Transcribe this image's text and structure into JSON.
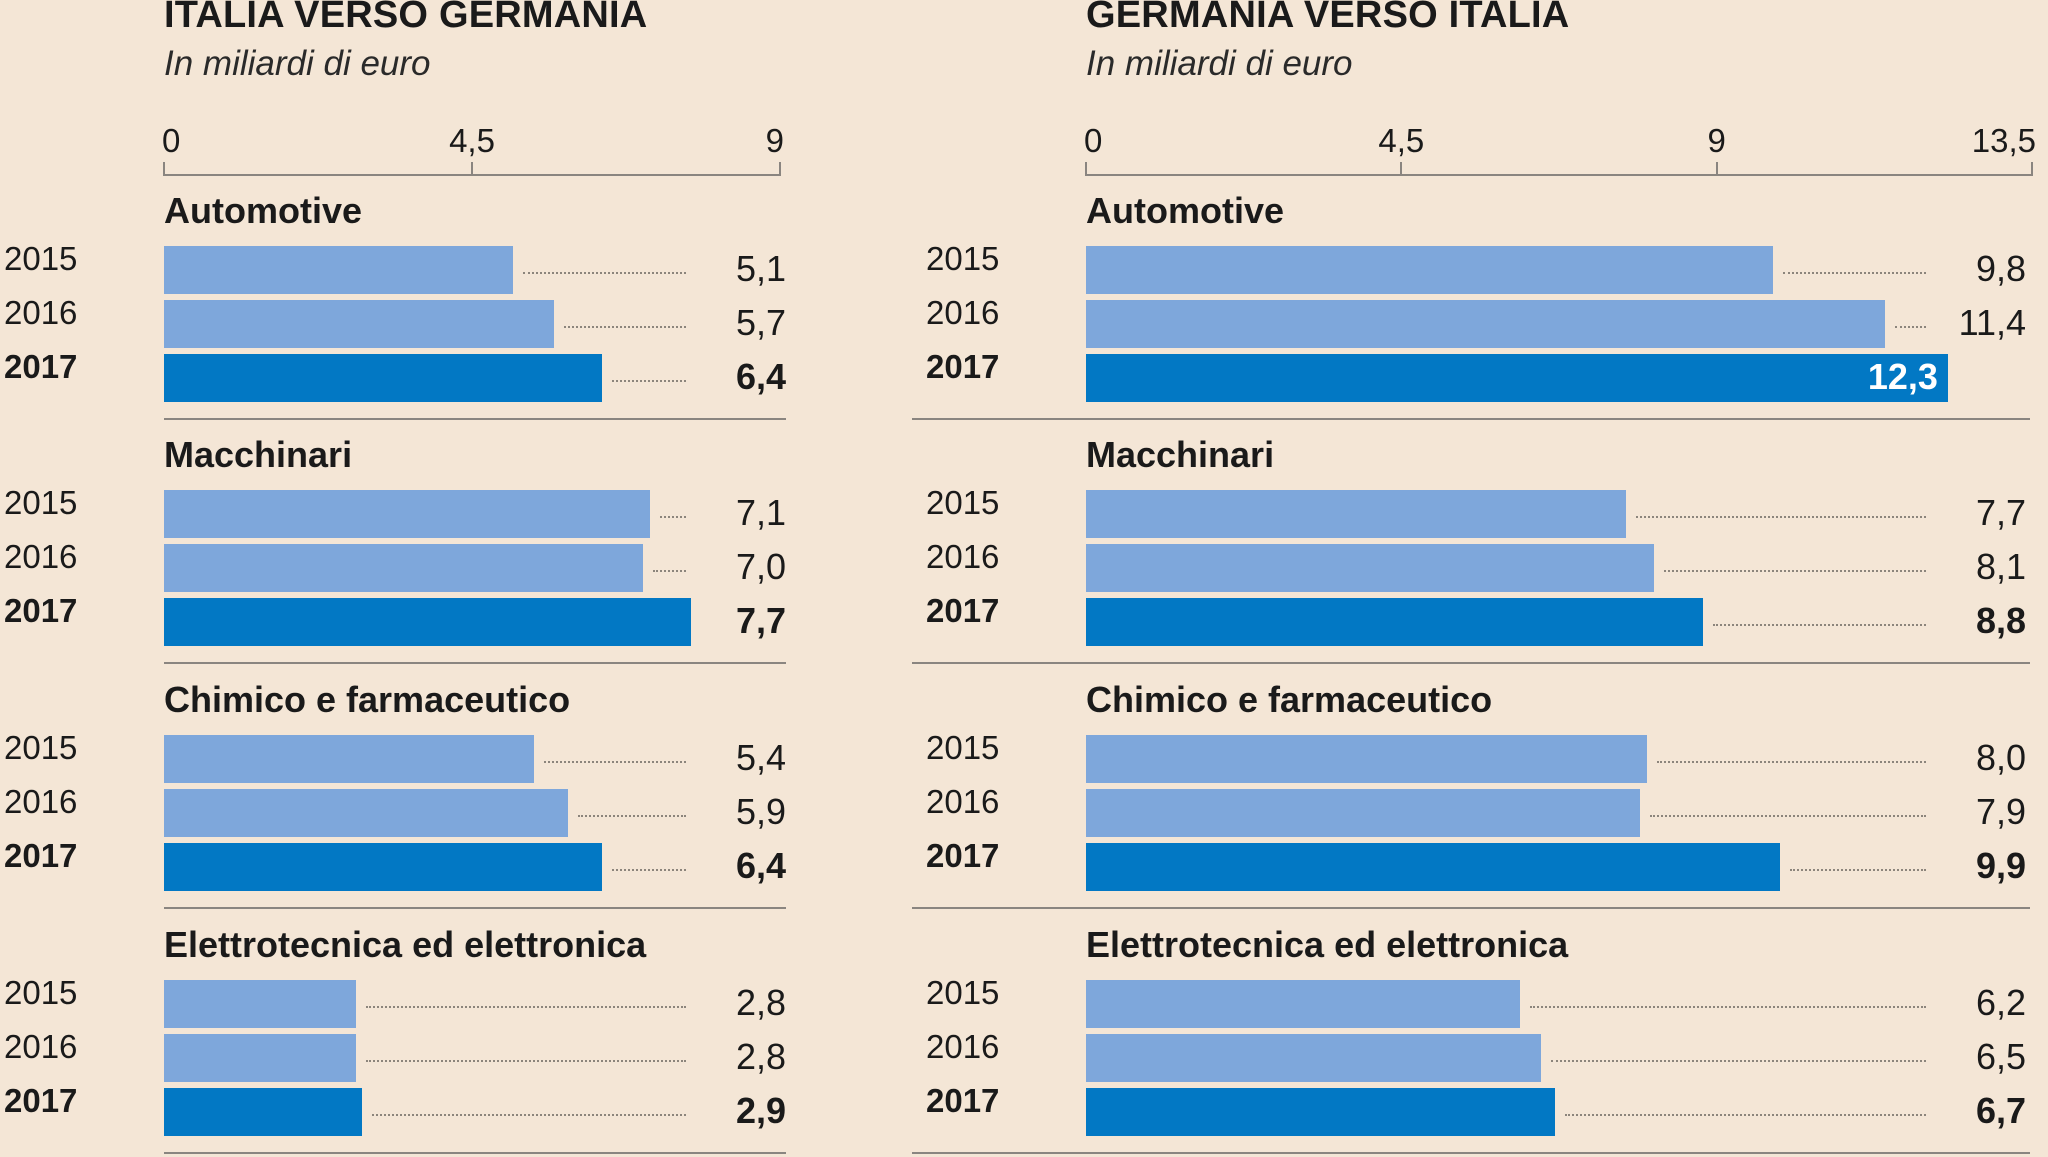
{
  "chart_data": [
    {
      "type": "bar",
      "orientation": "horizontal",
      "title": "ITALIA VERSO GERMANIA",
      "subtitle": "In miliardi di euro",
      "xlim": [
        0,
        9
      ],
      "ticks": [
        "0",
        "4,5",
        "9"
      ],
      "tick_values": [
        0,
        4.5,
        9
      ],
      "years": [
        "2015",
        "2016",
        "2017"
      ],
      "highlight_year": "2017",
      "groups": [
        {
          "name": "Automotive",
          "values": [
            5.1,
            5.7,
            6.4
          ],
          "labels": [
            "5,1",
            "5,7",
            "6,4"
          ]
        },
        {
          "name": "Macchinari",
          "values": [
            7.1,
            7.0,
            7.7
          ],
          "labels": [
            "7,1",
            "7,0",
            "7,7"
          ]
        },
        {
          "name": "Chimico e farmaceutico",
          "values": [
            5.4,
            5.9,
            6.4
          ],
          "labels": [
            "5,4",
            "5,9",
            "6,4"
          ]
        },
        {
          "name": "Elettrotecnica ed elettronica",
          "values": [
            2.8,
            2.8,
            2.9
          ],
          "labels": [
            "2,8",
            "2,8",
            "2,9"
          ]
        }
      ]
    },
    {
      "type": "bar",
      "orientation": "horizontal",
      "title": "GERMANIA VERSO ITALIA",
      "subtitle": "In miliardi di euro",
      "xlim": [
        0,
        13.5
      ],
      "ticks": [
        "0",
        "4,5",
        "9",
        "13,5"
      ],
      "tick_values": [
        0,
        4.5,
        9,
        13.5
      ],
      "years": [
        "2015",
        "2016",
        "2017"
      ],
      "highlight_year": "2017",
      "groups": [
        {
          "name": "Automotive",
          "values": [
            9.8,
            11.4,
            12.3
          ],
          "labels": [
            "9,8",
            "11,4",
            "12,3"
          ]
        },
        {
          "name": "Macchinari",
          "values": [
            7.7,
            8.1,
            8.8
          ],
          "labels": [
            "7,7",
            "8,1",
            "8,8"
          ]
        },
        {
          "name": "Chimico e farmaceutico",
          "values": [
            8.0,
            7.9,
            9.9
          ],
          "labels": [
            "8,0",
            "7,9",
            "9,9"
          ]
        },
        {
          "name": "Elettrotecnica ed elettronica",
          "values": [
            6.2,
            6.5,
            6.7
          ],
          "labels": [
            "6,2",
            "6,5",
            "6,7"
          ]
        }
      ]
    }
  ],
  "colors": {
    "background": "#f4e6d6",
    "bar_previous": "#7ea7db",
    "bar_current": "#0278c4"
  }
}
